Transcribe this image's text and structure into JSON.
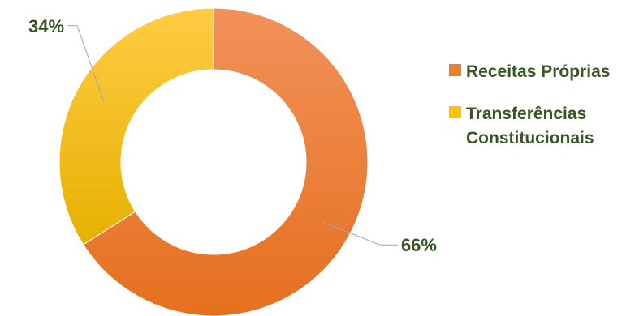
{
  "chart_data": {
    "type": "pie",
    "variant": "donut",
    "categories": [
      "Receitas Próprias",
      "Transferências Constitucionais"
    ],
    "values": [
      66,
      34
    ],
    "labels": [
      "66%",
      "34%"
    ],
    "colors": [
      "#ED7D31",
      "#FFC000"
    ],
    "label_color": "#375623",
    "legend": {
      "position": "right",
      "items": [
        {
          "line1": "Receitas Próprias",
          "line2": ""
        },
        {
          "line1": "Transferências",
          "line2": "Constitucionais"
        }
      ]
    }
  }
}
